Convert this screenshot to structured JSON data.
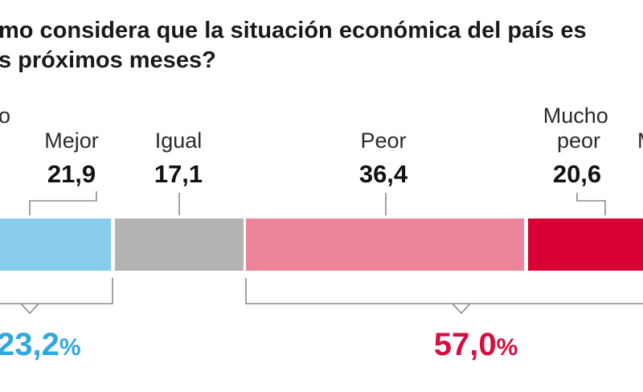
{
  "title": "mo considera que la situación económica del país es\ns próximos meses?",
  "colors": {
    "mucho_mejor": "#87cdeb",
    "mejor": "#87cdeb",
    "igual": "#b3b3b3",
    "peor": "#ec8599",
    "mucho_peor": "#d90033",
    "positive_total": "#2fa8de",
    "negative_total": "#d60d3e",
    "bracket": "#8a8a8a"
  },
  "totals": {
    "positive": {
      "value": "23,2",
      "unit": "%"
    },
    "negative": {
      "value": "57,0",
      "unit": "%"
    }
  },
  "chart_data": {
    "type": "bar",
    "orientation": "horizontal-stacked",
    "categories": [
      "o",
      "Mejor",
      "Igual",
      "Peor",
      "Mucho peor",
      "M"
    ],
    "values": [
      null,
      21.9,
      17.1,
      36.4,
      20.6,
      null
    ],
    "value_labels": [
      "",
      "21,9",
      "17,1",
      "36,4",
      "20,6",
      ""
    ],
    "totals": [
      {
        "label": "23,2%",
        "value": 23.2,
        "covers": [
          "o",
          "Mejor"
        ]
      },
      {
        "label": "57,0%",
        "value": 57.0,
        "covers": [
          "Peor",
          "Mucho peor",
          "M"
        ]
      }
    ]
  }
}
